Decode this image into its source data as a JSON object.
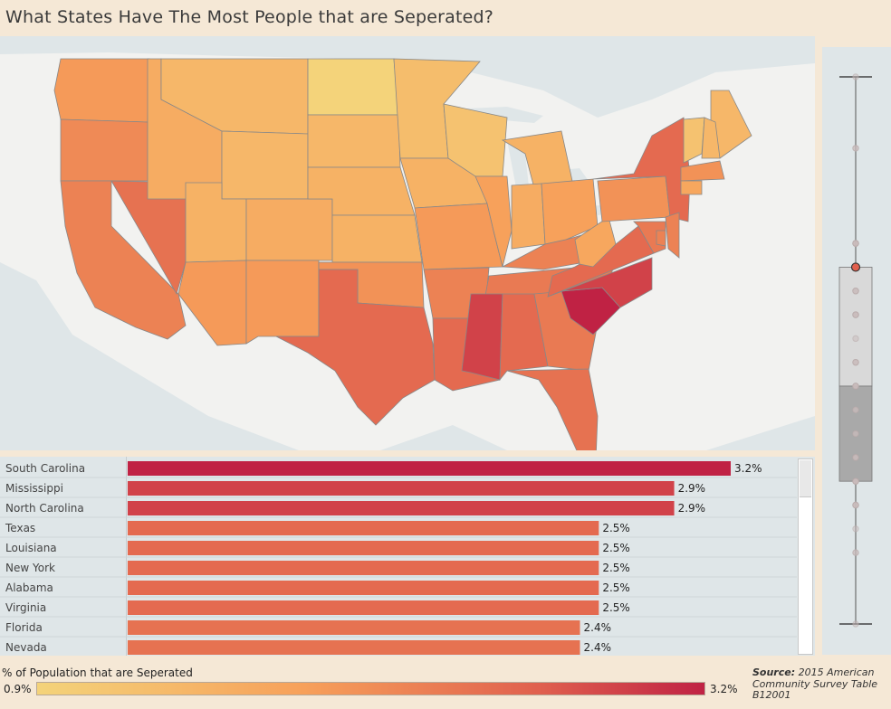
{
  "title": "What States Have The Most People that are Seperated?",
  "colors": {
    "low": "#f4d37a",
    "mid": "#f7a05a",
    "high": "#e0604e",
    "max": "#c02244",
    "panel": "#dfe6e8",
    "background": "#f5e8d6"
  },
  "map": {
    "states": [
      {
        "code": "WA",
        "value": 1.9
      },
      {
        "code": "OR",
        "value": 2.1
      },
      {
        "code": "CA",
        "value": 2.2
      },
      {
        "code": "NV",
        "value": 2.4
      },
      {
        "code": "ID",
        "value": 1.6
      },
      {
        "code": "MT",
        "value": 1.4
      },
      {
        "code": "WY",
        "value": 1.4
      },
      {
        "code": "UT",
        "value": 1.5
      },
      {
        "code": "AZ",
        "value": 1.9
      },
      {
        "code": "CO",
        "value": 1.6
      },
      {
        "code": "NM",
        "value": 1.9
      },
      {
        "code": "ND",
        "value": 0.9
      },
      {
        "code": "SD",
        "value": 1.4
      },
      {
        "code": "NE",
        "value": 1.5
      },
      {
        "code": "KS",
        "value": 1.5
      },
      {
        "code": "OK",
        "value": 2.0
      },
      {
        "code": "TX",
        "value": 2.5
      },
      {
        "code": "MN",
        "value": 1.3
      },
      {
        "code": "IA",
        "value": 1.5
      },
      {
        "code": "MO",
        "value": 1.9
      },
      {
        "code": "AR",
        "value": 2.2
      },
      {
        "code": "LA",
        "value": 2.5
      },
      {
        "code": "WI",
        "value": 1.2
      },
      {
        "code": "IL",
        "value": 1.8
      },
      {
        "code": "MI",
        "value": 1.5
      },
      {
        "code": "IN",
        "value": 1.6
      },
      {
        "code": "OH",
        "value": 1.8
      },
      {
        "code": "KY",
        "value": 2.2
      },
      {
        "code": "TN",
        "value": 2.3
      },
      {
        "code": "MS",
        "value": 2.9
      },
      {
        "code": "AL",
        "value": 2.5
      },
      {
        "code": "GA",
        "value": 2.3
      },
      {
        "code": "FL",
        "value": 2.4
      },
      {
        "code": "SC",
        "value": 3.2
      },
      {
        "code": "NC",
        "value": 2.9
      },
      {
        "code": "VA",
        "value": 2.5
      },
      {
        "code": "WV",
        "value": 1.7
      },
      {
        "code": "PA",
        "value": 2.0
      },
      {
        "code": "NY",
        "value": 2.5
      },
      {
        "code": "ME",
        "value": 1.4
      },
      {
        "code": "VT",
        "value": 1.2
      },
      {
        "code": "NH",
        "value": 1.4
      },
      {
        "code": "MA",
        "value": 2.0
      },
      {
        "code": "CT",
        "value": 1.7
      },
      {
        "code": "NJ",
        "value": 2.2
      },
      {
        "code": "MD",
        "value": 2.3
      },
      {
        "code": "DE",
        "value": 2.2
      }
    ]
  },
  "chart_data": {
    "type": "bar",
    "categories": [
      "South Carolina",
      "Mississippi",
      "North Carolina",
      "Texas",
      "Louisiana",
      "New York",
      "Alabama",
      "Virginia",
      "Florida",
      "Nevada"
    ],
    "values": [
      3.2,
      2.9,
      2.9,
      2.5,
      2.5,
      2.5,
      2.5,
      2.5,
      2.4,
      2.4
    ],
    "labels": [
      "3.2%",
      "2.9%",
      "2.9%",
      "2.5%",
      "2.5%",
      "2.5%",
      "2.5%",
      "2.5%",
      "2.4%",
      "2.4%"
    ],
    "value_unit": "%",
    "xlim": [
      0,
      3.2
    ]
  },
  "boxplot": {
    "min": 0.9,
    "q1": 1.5,
    "median": 1.9,
    "q3": 2.4,
    "max": 3.2,
    "highlight": 2.4,
    "points": [
      3.2,
      2.9,
      2.9,
      2.5,
      2.5,
      2.5,
      2.5,
      2.5,
      2.4,
      2.4,
      2.3,
      2.3,
      2.3,
      2.2,
      2.2,
      2.2,
      2.2,
      2.1,
      2.0,
      2.0,
      2.0,
      1.9,
      1.9,
      1.9,
      1.9,
      1.8,
      1.8,
      1.7,
      1.7,
      1.6,
      1.6,
      1.6,
      1.5,
      1.5,
      1.5,
      1.5,
      1.5,
      1.4,
      1.4,
      1.4,
      1.4,
      1.3,
      1.2,
      1.2,
      0.9
    ]
  },
  "legend": {
    "label": "% of Population that are Seperated",
    "min_label": "0.9%",
    "max_label": "3.2%",
    "min": 0.9,
    "max": 3.2
  },
  "source": {
    "prefix": "Source:",
    "text": "2015 American Community Survey Table B12001"
  }
}
